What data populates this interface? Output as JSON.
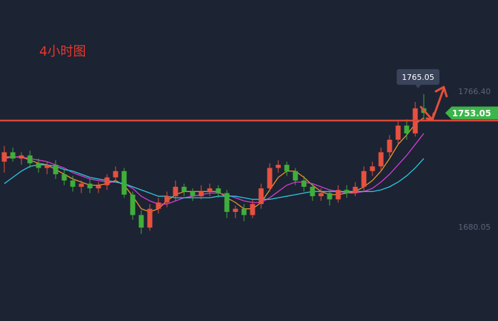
{
  "chart_data": {
    "type": "candlestick",
    "title": "4小时图",
    "ylim": [
      1620.5,
      1825.0
    ],
    "yticks": [
      {
        "value": 1766.4,
        "label": "1766.40"
      },
      1680.05
    ],
    "up_color": "#e8503f",
    "down_color": "#3fae3a",
    "open": [
      1722,
      1728,
      1724,
      1726,
      1721,
      1718,
      1720,
      1714,
      1710,
      1706,
      1708,
      1705,
      1707,
      1712,
      1716,
      1701,
      1688,
      1680,
      1692,
      1696,
      1700,
      1706,
      1703,
      1700,
      1703,
      1705,
      1702,
      1690,
      1692,
      1688,
      1695,
      1705,
      1718,
      1720,
      1716,
      1710,
      1706,
      1700,
      1702,
      1698,
      1704,
      1702,
      1706,
      1716,
      1719,
      1728,
      1736,
      1745,
      1740,
      1756
    ],
    "close": [
      1728,
      1724,
      1726,
      1721,
      1718,
      1720,
      1714,
      1710,
      1706,
      1708,
      1705,
      1707,
      1712,
      1716,
      1701,
      1688,
      1680,
      1692,
      1696,
      1700,
      1706,
      1703,
      1700,
      1703,
      1705,
      1702,
      1690,
      1692,
      1688,
      1695,
      1705,
      1718,
      1720,
      1716,
      1710,
      1706,
      1700,
      1702,
      1698,
      1704,
      1702,
      1706,
      1716,
      1719,
      1728,
      1736,
      1745,
      1740,
      1756,
      1753.05
    ],
    "high": [
      1732,
      1731,
      1728,
      1729,
      1724,
      1722,
      1723,
      1717,
      1713,
      1710,
      1711,
      1709,
      1714,
      1719,
      1718,
      1703,
      1691,
      1695,
      1699,
      1703,
      1710,
      1708,
      1705,
      1707,
      1708,
      1707,
      1704,
      1694,
      1695,
      1698,
      1708,
      1721,
      1723,
      1722,
      1718,
      1713,
      1708,
      1705,
      1704,
      1707,
      1707,
      1709,
      1719,
      1722,
      1731,
      1739,
      1748,
      1749,
      1760,
      1765.05
    ],
    "low": [
      1715,
      1722,
      1720,
      1718,
      1715,
      1714,
      1711,
      1707,
      1703,
      1702,
      1702,
      1702,
      1704,
      1709,
      1699,
      1685,
      1676,
      1678,
      1689,
      1693,
      1697,
      1700,
      1697,
      1698,
      1700,
      1699,
      1686,
      1686,
      1684,
      1686,
      1692,
      1703,
      1715,
      1713,
      1707,
      1703,
      1697,
      1697,
      1694,
      1696,
      1699,
      1700,
      1703,
      1713,
      1716,
      1725,
      1733,
      1736,
      1738,
      1748
    ],
    "ma_lines": [
      {
        "color": "#f0932b",
        "values": [
          1725,
          1725,
          1725,
          1723,
          1721,
          1720,
          1717,
          1714,
          1711,
          1709,
          1707,
          1707,
          1708,
          1710,
          1707,
          1700,
          1692,
          1690,
          1692,
          1697,
          1701,
          1703,
          1703,
          1703,
          1703,
          1703,
          1699,
          1696,
          1692,
          1692,
          1696,
          1704,
          1712,
          1716,
          1716,
          1712,
          1707,
          1703,
          1701,
          1701,
          1702,
          1703,
          1706,
          1710,
          1716,
          1724,
          1733,
          1739,
          1746,
          1750
        ]
      },
      {
        "color": "#d63cd6",
        "values": [
          1724,
          1725,
          1725,
          1724,
          1723,
          1722,
          1720,
          1718,
          1715,
          1713,
          1711,
          1710,
          1709,
          1709,
          1708,
          1705,
          1700,
          1697,
          1695,
          1695,
          1697,
          1699,
          1700,
          1701,
          1702,
          1702,
          1701,
          1699,
          1697,
          1696,
          1696,
          1699,
          1703,
          1707,
          1709,
          1709,
          1708,
          1706,
          1704,
          1703,
          1702,
          1702,
          1703,
          1705,
          1709,
          1714,
          1720,
          1726,
          1733,
          1740
        ]
      },
      {
        "color": "#2ec8e0",
        "values": [
          1708,
          1712,
          1716,
          1719,
          1720,
          1720,
          1719,
          1717,
          1716,
          1714,
          1712,
          1711,
          1710,
          1709,
          1708,
          1706,
          1704,
          1702,
          1700,
          1700,
          1699,
          1699,
          1699,
          1699,
          1699,
          1700,
          1700,
          1700,
          1699,
          1698,
          1698,
          1698,
          1699,
          1700,
          1701,
          1702,
          1703,
          1703,
          1703,
          1703,
          1703,
          1703,
          1703,
          1703,
          1704,
          1706,
          1709,
          1713,
          1718,
          1724
        ]
      }
    ],
    "hline": {
      "value": 1748.2,
      "color": "#d9483b"
    },
    "last_price": 1753.05,
    "high_label": 1765.05
  }
}
